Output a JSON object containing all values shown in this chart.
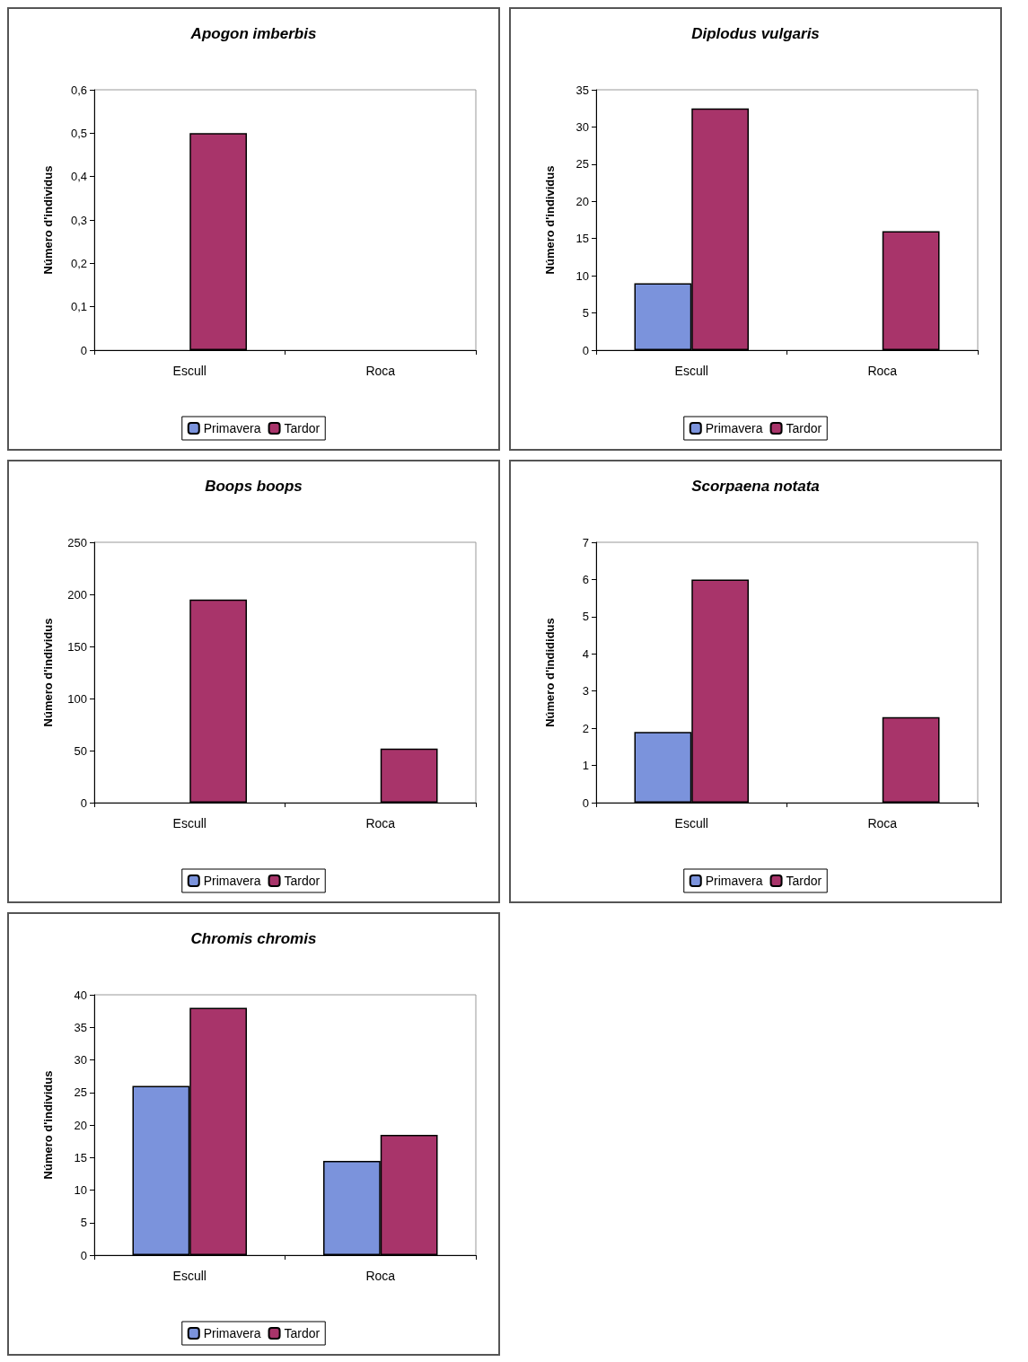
{
  "chart_data": [
    {
      "type": "bar",
      "title": "Apogon imberbis",
      "ylabel": "Número d'individus",
      "categories": [
        "Escull",
        "Roca"
      ],
      "series": [
        {
          "name": "Primavera",
          "color": "#7b93dc",
          "values": [
            null,
            null
          ]
        },
        {
          "name": "Tardor",
          "color": "#a8346a",
          "values": [
            0.5,
            null
          ]
        }
      ],
      "ylim": [
        0,
        0.6
      ],
      "yticks": [
        0,
        {
          "value": 0.1,
          "label": "0,1"
        },
        {
          "value": 0.2,
          "label": "0,2"
        },
        {
          "value": 0.3,
          "label": "0,3"
        },
        {
          "value": 0.4,
          "label": "0,4"
        },
        {
          "value": 0.5,
          "label": "0,5"
        },
        {
          "value": 0.6,
          "label": "0,6"
        }
      ],
      "legend": "bottom",
      "grid": false
    },
    {
      "type": "bar",
      "title": "Diplodus vulgaris",
      "ylabel": "Número d'individus",
      "categories": [
        "Escull",
        "Roca"
      ],
      "series": [
        {
          "name": "Primavera",
          "color": "#7b93dc",
          "values": [
            9,
            null
          ]
        },
        {
          "name": "Tardor",
          "color": "#a8346a",
          "values": [
            32.5,
            16
          ]
        }
      ],
      "ylim": [
        0,
        35
      ],
      "yticks": [
        0,
        5,
        10,
        15,
        20,
        25,
        30,
        35
      ],
      "legend": "bottom",
      "grid": false
    },
    {
      "type": "bar",
      "title": "Boops boops",
      "ylabel": "Número d'individus",
      "categories": [
        "Escull",
        "Roca"
      ],
      "series": [
        {
          "name": "Primavera",
          "color": "#7b93dc",
          "values": [
            null,
            null
          ]
        },
        {
          "name": "Tardor",
          "color": "#a8346a",
          "values": [
            195,
            52
          ]
        }
      ],
      "ylim": [
        0,
        250
      ],
      "yticks": [
        0,
        50,
        100,
        150,
        200,
        250
      ],
      "legend": "bottom",
      "grid": false
    },
    {
      "type": "bar",
      "title": "Scorpaena notata",
      "ylabel": "Número d'indididus",
      "categories": [
        "Escull",
        "Roca"
      ],
      "series": [
        {
          "name": "Primavera",
          "color": "#7b93dc",
          "values": [
            1.9,
            null
          ]
        },
        {
          "name": "Tardor",
          "color": "#a8346a",
          "values": [
            6,
            2.3
          ]
        }
      ],
      "ylim": [
        0,
        7
      ],
      "yticks": [
        0,
        1,
        2,
        3,
        4,
        5,
        6,
        7
      ],
      "legend": "bottom",
      "grid": false
    },
    {
      "type": "bar",
      "title": "Chromis chromis",
      "ylabel": "Número d'individus",
      "categories": [
        "Escull",
        "Roca"
      ],
      "series": [
        {
          "name": "Primavera",
          "color": "#7b93dc",
          "values": [
            26,
            14.5
          ]
        },
        {
          "name": "Tardor",
          "color": "#a8346a",
          "values": [
            38,
            18.5
          ]
        }
      ],
      "ylim": [
        0,
        40
      ],
      "yticks": [
        0,
        5,
        10,
        15,
        20,
        25,
        30,
        35,
        40
      ],
      "legend": "bottom",
      "grid": false
    }
  ]
}
